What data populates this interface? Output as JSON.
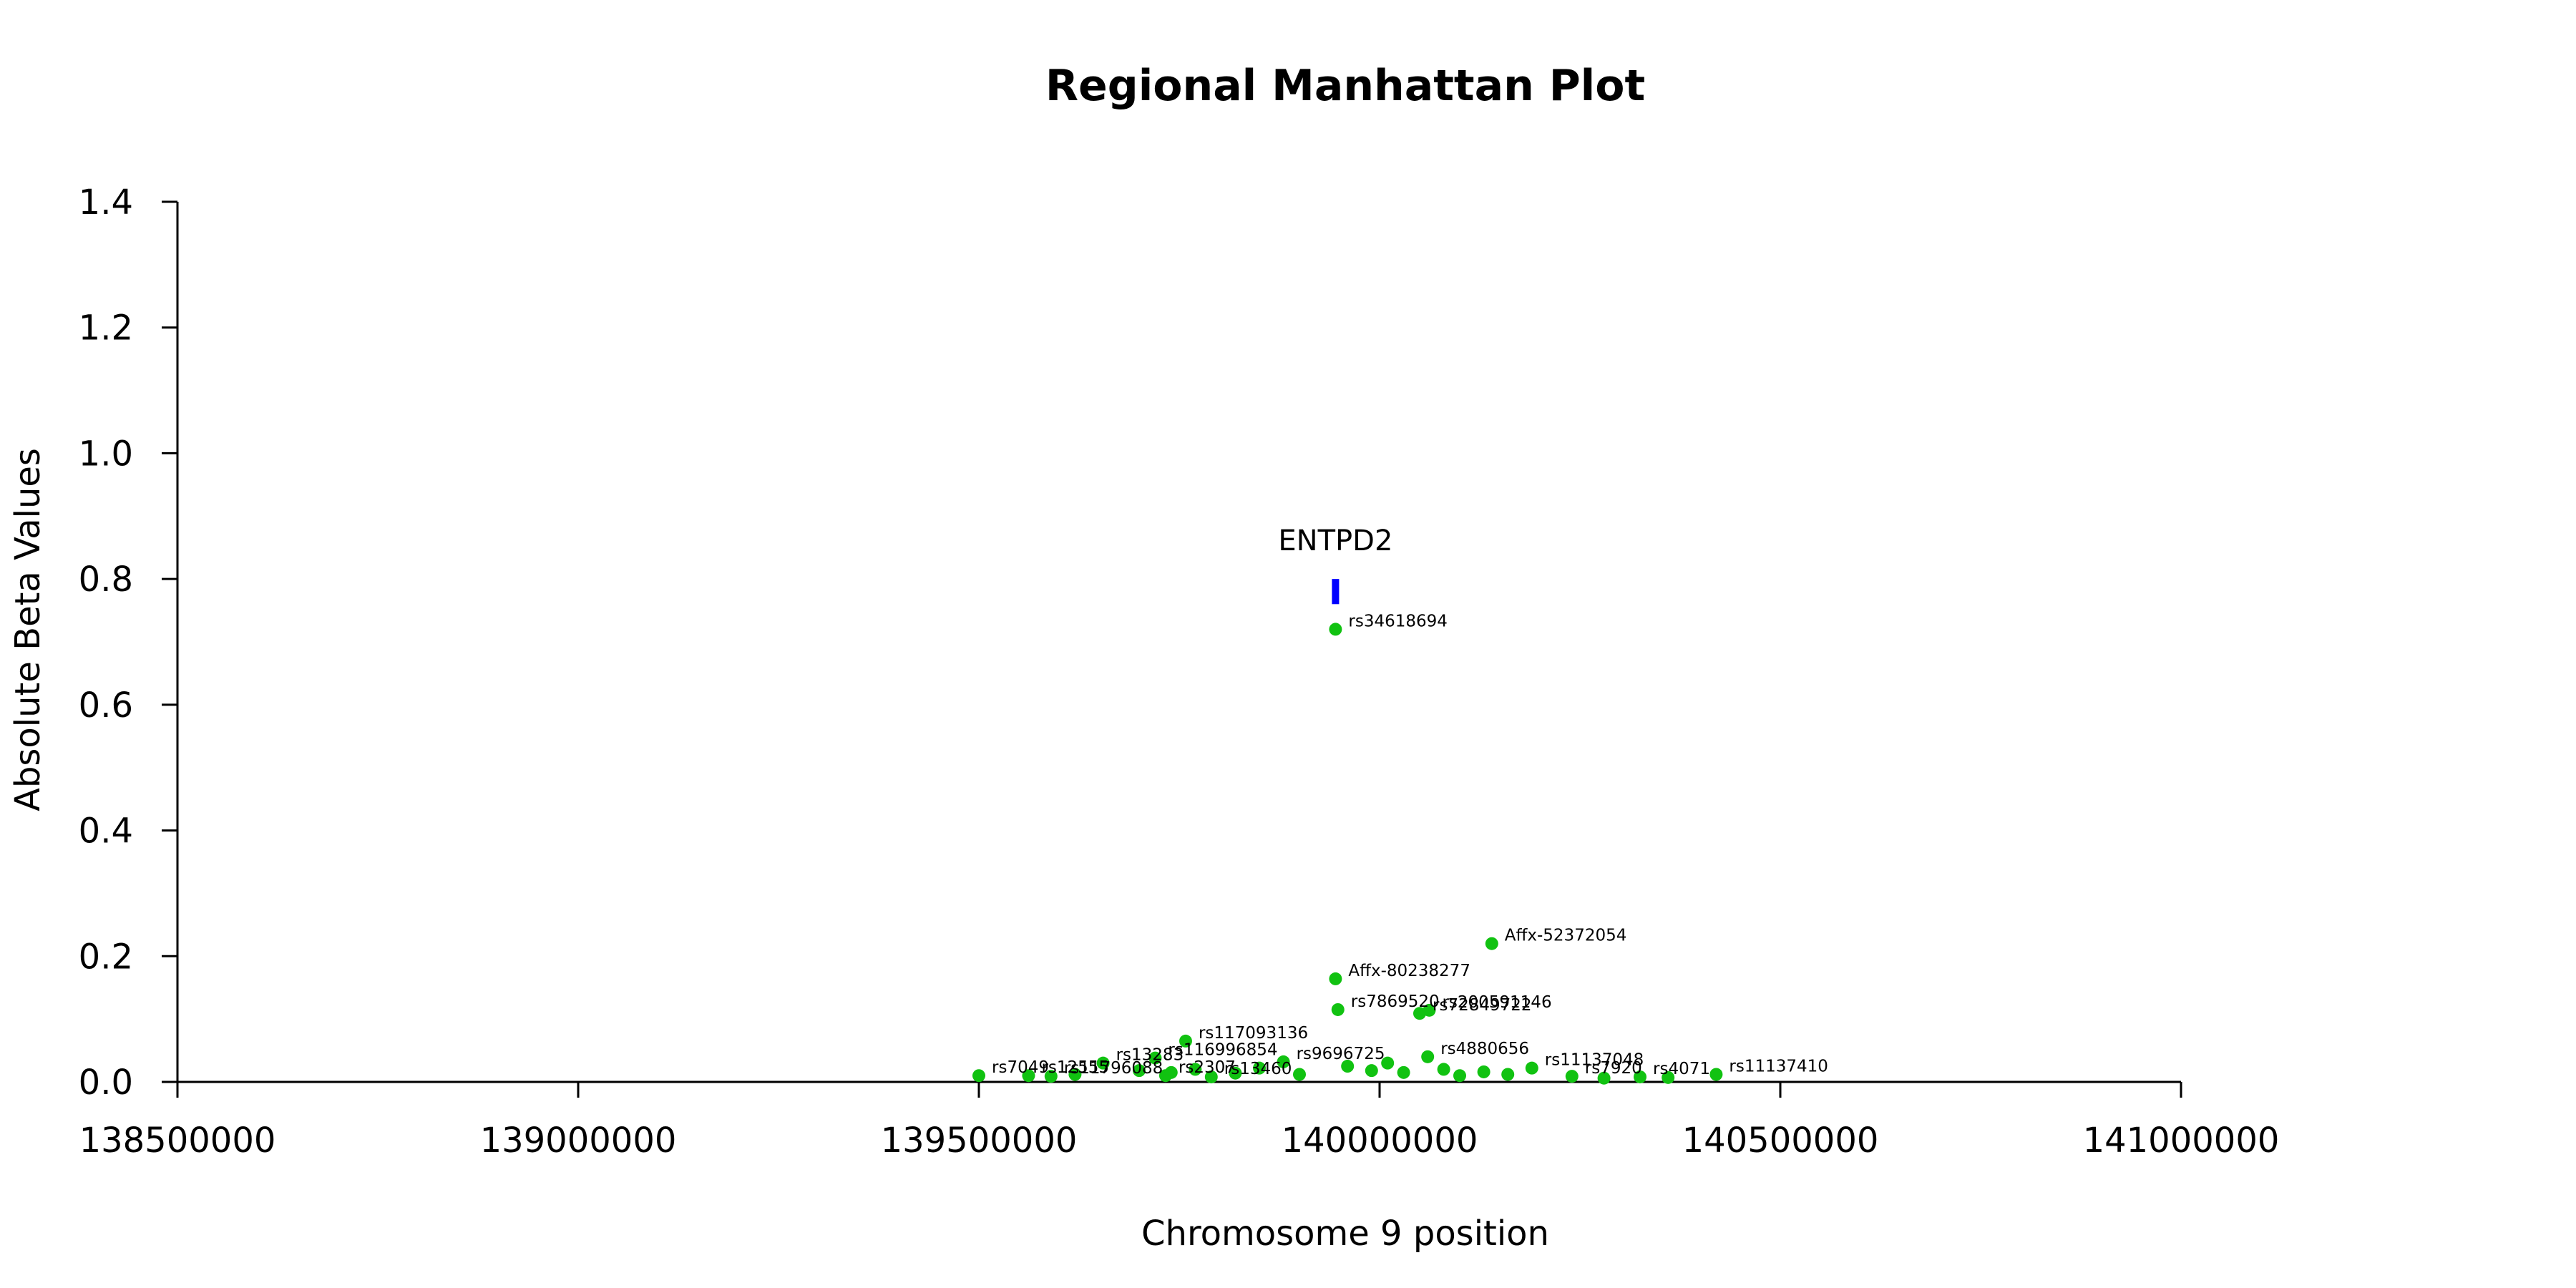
{
  "chart_data": {
    "type": "scatter",
    "title": "Regional Manhattan Plot",
    "xlabel": "Chromosome 9 position",
    "ylabel": "Absolute Beta Values",
    "xlim": [
      138500000,
      141000000
    ],
    "ylim": [
      0.0,
      1.4
    ],
    "xticks": [
      138500000,
      139000000,
      139500000,
      140000000,
      140500000,
      141000000
    ],
    "xtick_labels": [
      "138500000",
      "139000000",
      "139500000",
      "140000000",
      "140500000",
      "141000000"
    ],
    "yticks": [
      0.0,
      0.2,
      0.4,
      0.6,
      0.8,
      1.0,
      1.2,
      1.4
    ],
    "ytick_labels": [
      "0.0",
      "0.2",
      "0.4",
      "0.6",
      "0.8",
      "1.0",
      "1.2",
      "1.4"
    ],
    "grid": false,
    "point_color": "#11c211",
    "gene_marker": {
      "label": "ENTPD2",
      "x": 139945000,
      "y_low": 0.76,
      "y_high": 0.8,
      "color": "#0000ff"
    },
    "points": [
      {
        "x": 139945000,
        "y": 0.72,
        "label": "rs34618694"
      },
      {
        "x": 140140000,
        "y": 0.22,
        "label": "Affx-52372054"
      },
      {
        "x": 139945000,
        "y": 0.164,
        "label": "Affx-80238277"
      },
      {
        "x": 139948000,
        "y": 0.115,
        "label": "rs7869520"
      },
      {
        "x": 140050000,
        "y": 0.109,
        "label": "rs72849722"
      },
      {
        "x": 140062000,
        "y": 0.114,
        "label": "rs200591146"
      },
      {
        "x": 139758000,
        "y": 0.065,
        "label": "rs117093136"
      },
      {
        "x": 139720000,
        "y": 0.038,
        "label": "rs116996854"
      },
      {
        "x": 139655000,
        "y": 0.03,
        "label": "rs13283"
      },
      {
        "x": 139880000,
        "y": 0.032,
        "label": "rs9696725"
      },
      {
        "x": 140060000,
        "y": 0.04,
        "label": "rs4880656"
      },
      {
        "x": 140190000,
        "y": 0.022,
        "label": "rs11137048"
      },
      {
        "x": 139500000,
        "y": 0.01,
        "label": "rs7049"
      },
      {
        "x": 139562000,
        "y": 0.01,
        "label": "rs12555"
      },
      {
        "x": 139590000,
        "y": 0.009,
        "label": "rs11796088"
      },
      {
        "x": 139733000,
        "y": 0.01,
        "label": "rs2307"
      },
      {
        "x": 139790000,
        "y": 0.008,
        "label": "rs13460"
      },
      {
        "x": 140240000,
        "y": 0.009,
        "label": "rs7920"
      },
      {
        "x": 140325000,
        "y": 0.008,
        "label": "rs4071"
      },
      {
        "x": 140420000,
        "y": 0.012,
        "label": "rs11137410"
      },
      {
        "x": 139620000,
        "y": 0.012,
        "label": ""
      },
      {
        "x": 139700000,
        "y": 0.018,
        "label": ""
      },
      {
        "x": 139740000,
        "y": 0.015,
        "label": ""
      },
      {
        "x": 139770000,
        "y": 0.02,
        "label": ""
      },
      {
        "x": 139820000,
        "y": 0.014,
        "label": ""
      },
      {
        "x": 139850000,
        "y": 0.022,
        "label": ""
      },
      {
        "x": 139900000,
        "y": 0.012,
        "label": ""
      },
      {
        "x": 139960000,
        "y": 0.025,
        "label": ""
      },
      {
        "x": 139990000,
        "y": 0.018,
        "label": ""
      },
      {
        "x": 140010000,
        "y": 0.03,
        "label": ""
      },
      {
        "x": 140030000,
        "y": 0.015,
        "label": ""
      },
      {
        "x": 140080000,
        "y": 0.02,
        "label": ""
      },
      {
        "x": 140100000,
        "y": 0.01,
        "label": ""
      },
      {
        "x": 140130000,
        "y": 0.016,
        "label": ""
      },
      {
        "x": 140160000,
        "y": 0.012,
        "label": ""
      },
      {
        "x": 140280000,
        "y": 0.006,
        "label": ""
      },
      {
        "x": 140360000,
        "y": 0.007,
        "label": ""
      }
    ]
  }
}
